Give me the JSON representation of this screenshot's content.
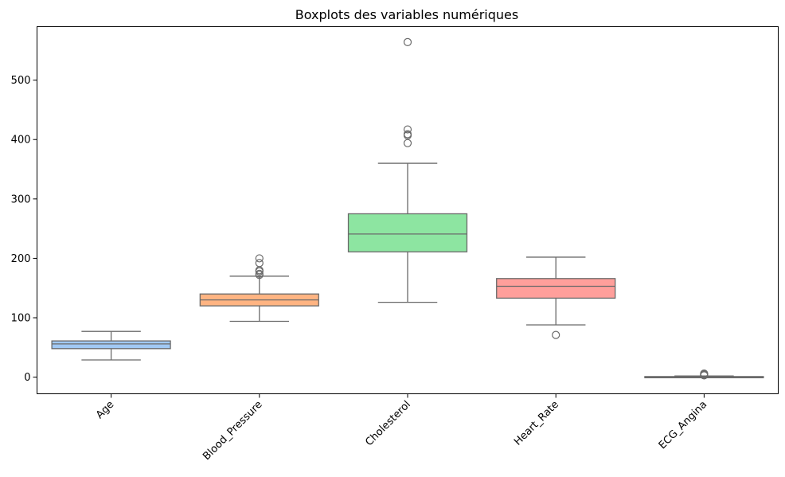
{
  "chart_data": {
    "type": "box",
    "title": "Boxplots des variables numériques",
    "xlabel": "",
    "ylabel": "",
    "ylim": [
      -28,
      590
    ],
    "yticks": [
      0,
      100,
      200,
      300,
      400,
      500
    ],
    "categories": [
      "Age",
      "Blood_Pressure",
      "Cholesterol",
      "Heart_Rate",
      "ECG_Angina"
    ],
    "boxes": [
      {
        "category": "Age",
        "color": "#a1c9f4",
        "whisker_low": 29,
        "q1": 48,
        "median": 56,
        "q3": 61,
        "whisker_high": 77,
        "outliers": []
      },
      {
        "category": "Blood_Pressure",
        "color": "#ffb482",
        "whisker_low": 94,
        "q1": 120,
        "median": 130,
        "q3": 140,
        "whisker_high": 170,
        "outliers": [
          172,
          174,
          178,
          180,
          192,
          200
        ]
      },
      {
        "category": "Cholesterol",
        "color": "#8de5a1",
        "whisker_low": 126,
        "q1": 211,
        "median": 241,
        "q3": 275,
        "whisker_high": 360,
        "outliers": [
          394,
          407,
          409,
          417,
          564
        ]
      },
      {
        "category": "Heart_Rate",
        "color": "#ff9f9b",
        "whisker_low": 88,
        "q1": 133,
        "median": 153,
        "q3": 166,
        "whisker_high": 202,
        "outliers": [
          71
        ]
      },
      {
        "category": "ECG_Angina",
        "color": "#d0bbff",
        "whisker_low": 0,
        "q1": 0,
        "median": 0,
        "q3": 1,
        "whisker_high": 2,
        "outliers": [
          3,
          4,
          5,
          6
        ]
      }
    ]
  }
}
